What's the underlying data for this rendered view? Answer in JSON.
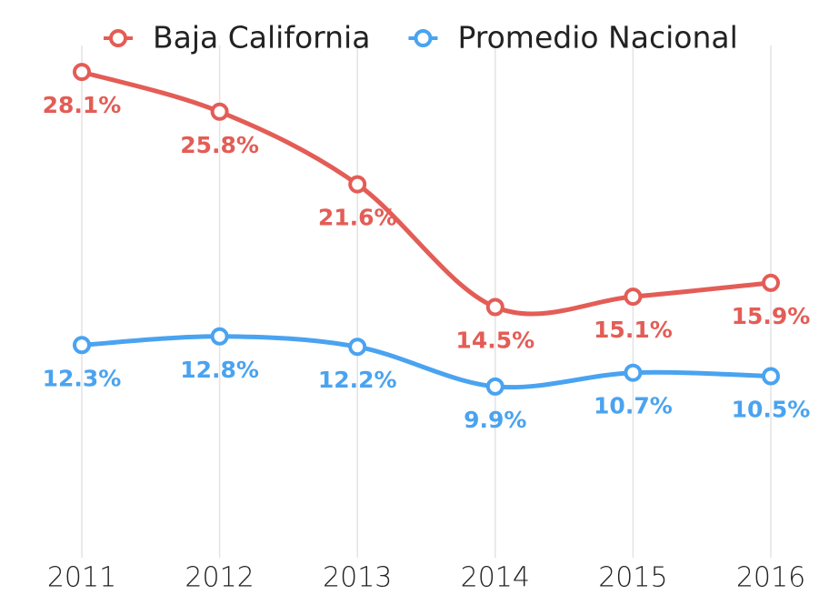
{
  "chart_data": {
    "type": "line",
    "categories": [
      "2011",
      "2012",
      "2013",
      "2014",
      "2015",
      "2016"
    ],
    "series": [
      {
        "name": "Baja California",
        "color": "#e35d56",
        "values": [
          28.1,
          25.8,
          21.6,
          14.5,
          15.1,
          15.9
        ],
        "value_labels": [
          "28.1%",
          "25.8%",
          "21.6%",
          "14.5%",
          "15.1%",
          "15.9%"
        ]
      },
      {
        "name": "Promedio Nacional",
        "color": "#4aa3f0",
        "values": [
          12.3,
          12.8,
          12.2,
          9.9,
          10.7,
          10.5
        ],
        "value_labels": [
          "12.3%",
          "12.8%",
          "12.2%",
          "9.9%",
          "10.7%",
          "10.5%"
        ]
      }
    ],
    "ylim": [
      0,
      30
    ],
    "grid": true,
    "legend": "top"
  }
}
